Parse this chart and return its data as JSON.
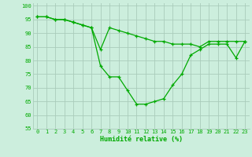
{
  "line1": [
    96,
    96,
    95,
    95,
    94,
    93,
    92,
    78,
    74,
    74,
    69,
    64,
    64,
    65,
    66,
    71,
    75,
    82,
    84,
    86,
    86,
    86,
    81,
    87
  ],
  "line2": [
    96,
    96,
    95,
    95,
    94,
    93,
    92,
    84,
    92,
    91,
    90,
    89,
    88,
    87,
    87,
    86,
    86,
    86,
    85,
    87,
    87,
    87,
    87,
    87
  ],
  "x": [
    0,
    1,
    2,
    3,
    4,
    5,
    6,
    7,
    8,
    9,
    10,
    11,
    12,
    13,
    14,
    15,
    16,
    17,
    18,
    19,
    20,
    21,
    22,
    23
  ],
  "xlabel": "Humidité relative (%)",
  "ylim": [
    55,
    101
  ],
  "yticks": [
    55,
    60,
    65,
    70,
    75,
    80,
    85,
    90,
    95,
    100
  ],
  "xticks": [
    0,
    1,
    2,
    3,
    4,
    5,
    6,
    7,
    8,
    9,
    10,
    11,
    12,
    13,
    14,
    15,
    16,
    17,
    18,
    19,
    20,
    21,
    22,
    23
  ],
  "line_color": "#00aa00",
  "bg_color": "#cceedd",
  "grid_color": "#aaccbb",
  "marker": "+",
  "linewidth": 0.9,
  "markersize": 3.5,
  "tick_fontsize": 5.0,
  "xlabel_fontsize": 6.0
}
